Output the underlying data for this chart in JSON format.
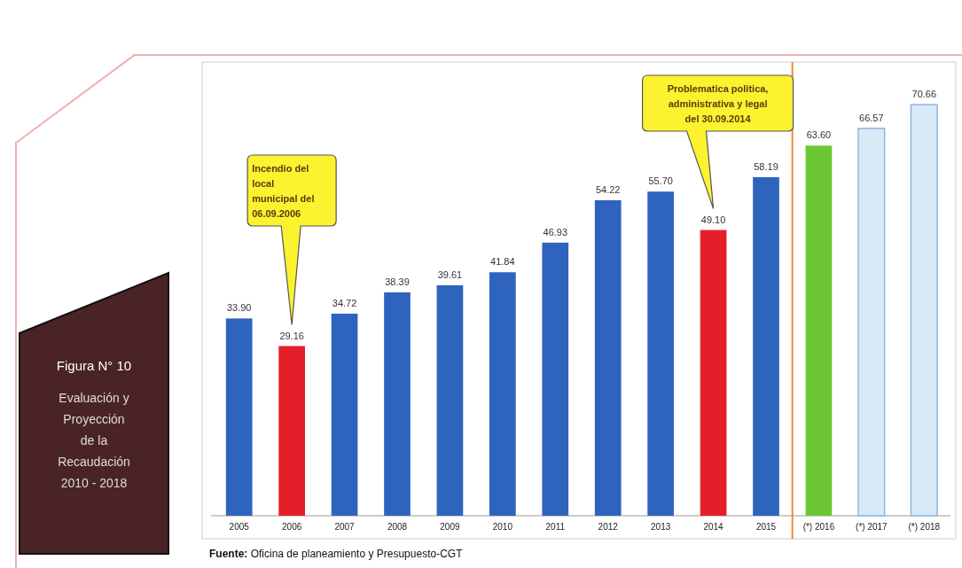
{
  "chart_data": {
    "type": "bar",
    "title": "Figura N° 10",
    "subtitle": "Evaluación y Proyección de la Recaudación 2010 - 2018",
    "categories": [
      "2005",
      "2006",
      "2007",
      "2008",
      "2009",
      "2010",
      "2011",
      "2012",
      "2013",
      "2014",
      "2015",
      "(*) 2016",
      "(*) 2017",
      "(*) 2018"
    ],
    "values": [
      33.9,
      29.16,
      34.72,
      38.39,
      39.61,
      41.84,
      46.93,
      54.22,
      55.7,
      49.1,
      58.19,
      63.6,
      66.57,
      70.66
    ],
    "value_labels": [
      "33.90",
      "29.16",
      "34.72",
      "38.39",
      "39.61",
      "41.84",
      "46.93",
      "54.22",
      "55.70",
      "49.10",
      "58.19",
      "63.60",
      "66.57",
      "70.66"
    ],
    "colors": [
      "#2e64be",
      "#e41f2a",
      "#2e64be",
      "#2e64be",
      "#2e64be",
      "#2e64be",
      "#2e64be",
      "#2e64be",
      "#2e64be",
      "#e41f2a",
      "#2e64be",
      "#6cc832",
      "#d8e9f8",
      "#d8e9f8"
    ],
    "ref_lines": [
      {
        "axis": "x",
        "value": "(*) 2016",
        "color": "#f0883a"
      }
    ],
    "annotations": [
      "Incendio del local municipal del 06.09.2006",
      "Problematica politica, administrativa y legal del 30.09.2014",
      "Fuente: Oficina de planeamiento y Presupuesto-CGT"
    ]
  }
}
